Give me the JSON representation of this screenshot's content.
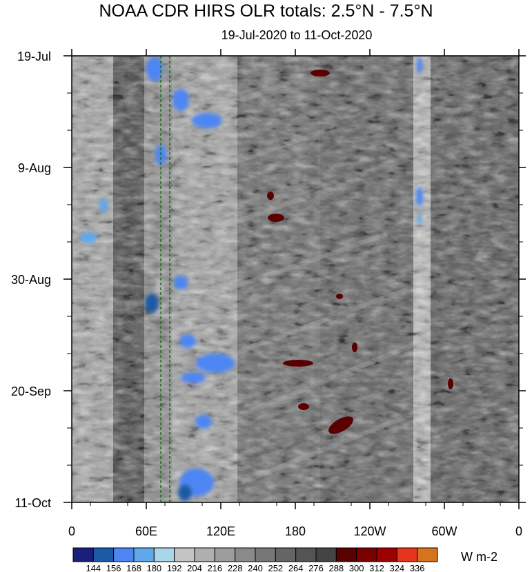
{
  "chart_data": {
    "type": "heatmap",
    "title": "NOAA CDR HIRS OLR totals: 2.5°N - 7.5°N",
    "subtitle": "19-Jul-2020 to 11-Oct-2020",
    "units": "W m-2",
    "x_tick_labels": [
      "0",
      "60E",
      "120E",
      "180",
      "120W",
      "60W",
      "0"
    ],
    "y_tick_labels": [
      "19-Jul",
      "9-Aug",
      "30-Aug",
      "20-Sep",
      "11-Oct"
    ],
    "colorbar": {
      "labels": [
        "144",
        "156",
        "168",
        "180",
        "192",
        "204",
        "216",
        "228",
        "240",
        "252",
        "264",
        "276",
        "288",
        "300",
        "312",
        "324",
        "336"
      ],
      "colors": [
        "#1a1f7a",
        "#1d5aa6",
        "#4d86f2",
        "#5fa8eb",
        "#a9d6ea",
        "#c4c4c4",
        "#afafaf",
        "#9d9d9d",
        "#8a8a8a",
        "#777777",
        "#656565",
        "#545454",
        "#444444",
        "#5a0000",
        "#7a0000",
        "#9c0000",
        "#e5361b",
        "#d4741f"
      ]
    },
    "reference_lines_longitude": [
      "72E",
      "80E"
    ],
    "reference_line_color": "#1a6e1a"
  }
}
